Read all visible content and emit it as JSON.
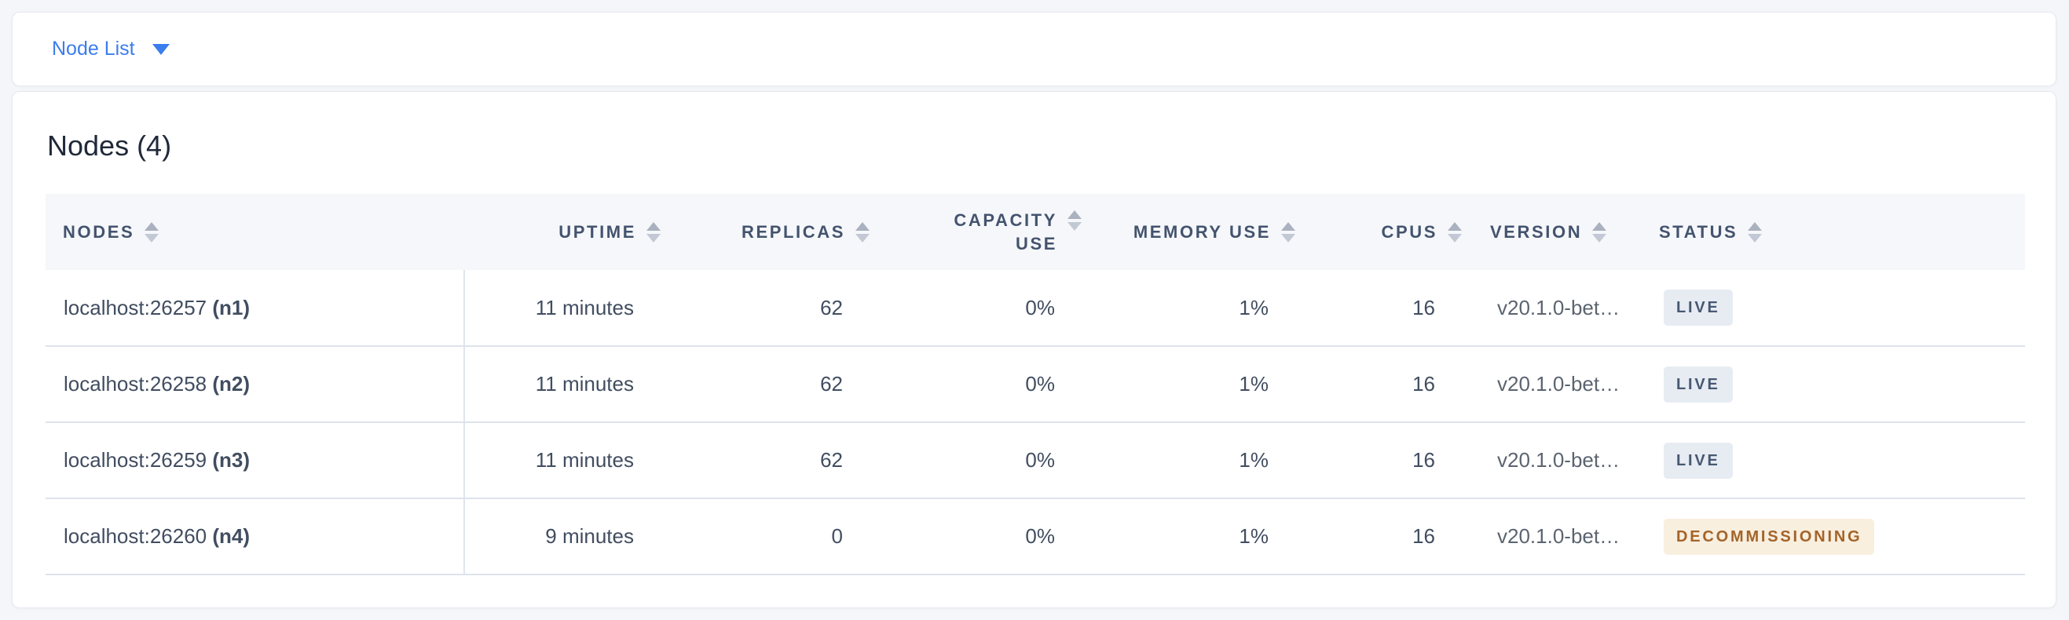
{
  "toolbar": {
    "dropdown_label": "Node List"
  },
  "panel": {
    "title": "Nodes (4)",
    "table": {
      "columns": [
        {
          "key": "nodes",
          "label": "NODES",
          "align": "left"
        },
        {
          "key": "uptime",
          "label": "UPTIME",
          "align": "right"
        },
        {
          "key": "replicas",
          "label": "REPLICAS",
          "align": "right"
        },
        {
          "key": "capacity_use",
          "label": "CAPACITY USE",
          "align": "right",
          "lines": [
            "CAPACITY",
            "USE"
          ]
        },
        {
          "key": "memory_use",
          "label": "MEMORY USE",
          "align": "right"
        },
        {
          "key": "cpus",
          "label": "CPUS",
          "align": "right"
        },
        {
          "key": "version",
          "label": "VERSION",
          "align": "left"
        },
        {
          "key": "status",
          "label": "STATUS",
          "align": "left"
        }
      ],
      "rows": [
        {
          "address": "localhost:26257",
          "node_id": "(n1)",
          "uptime": "11 minutes",
          "replicas": "62",
          "capacity_use": "0%",
          "memory_use": "1%",
          "cpus": "16",
          "version": "v20.1.0-bet…",
          "status": "LIVE",
          "status_type": "live"
        },
        {
          "address": "localhost:26258",
          "node_id": "(n2)",
          "uptime": "11 minutes",
          "replicas": "62",
          "capacity_use": "0%",
          "memory_use": "1%",
          "cpus": "16",
          "version": "v20.1.0-bet…",
          "status": "LIVE",
          "status_type": "live"
        },
        {
          "address": "localhost:26259",
          "node_id": "(n3)",
          "uptime": "11 minutes",
          "replicas": "62",
          "capacity_use": "0%",
          "memory_use": "1%",
          "cpus": "16",
          "version": "v20.1.0-bet…",
          "status": "LIVE",
          "status_type": "live"
        },
        {
          "address": "localhost:26260",
          "node_id": "(n4)",
          "uptime": "9 minutes",
          "replicas": "0",
          "capacity_use": "0%",
          "memory_use": "1%",
          "cpus": "16",
          "version": "v20.1.0-bet…",
          "status": "DECOMMISSIONING",
          "status_type": "decommissioning"
        }
      ]
    }
  },
  "colors": {
    "accent_blue": "#3b7ded",
    "page_background": "#f4f6fa",
    "header_text": "#44536e",
    "row_text": "#414d60",
    "badge_live_bg": "#e7ecf3",
    "badge_live_text": "#475872",
    "badge_decommissioning_bg": "#f9efdf",
    "badge_decommissioning_text": "#a3642a"
  }
}
